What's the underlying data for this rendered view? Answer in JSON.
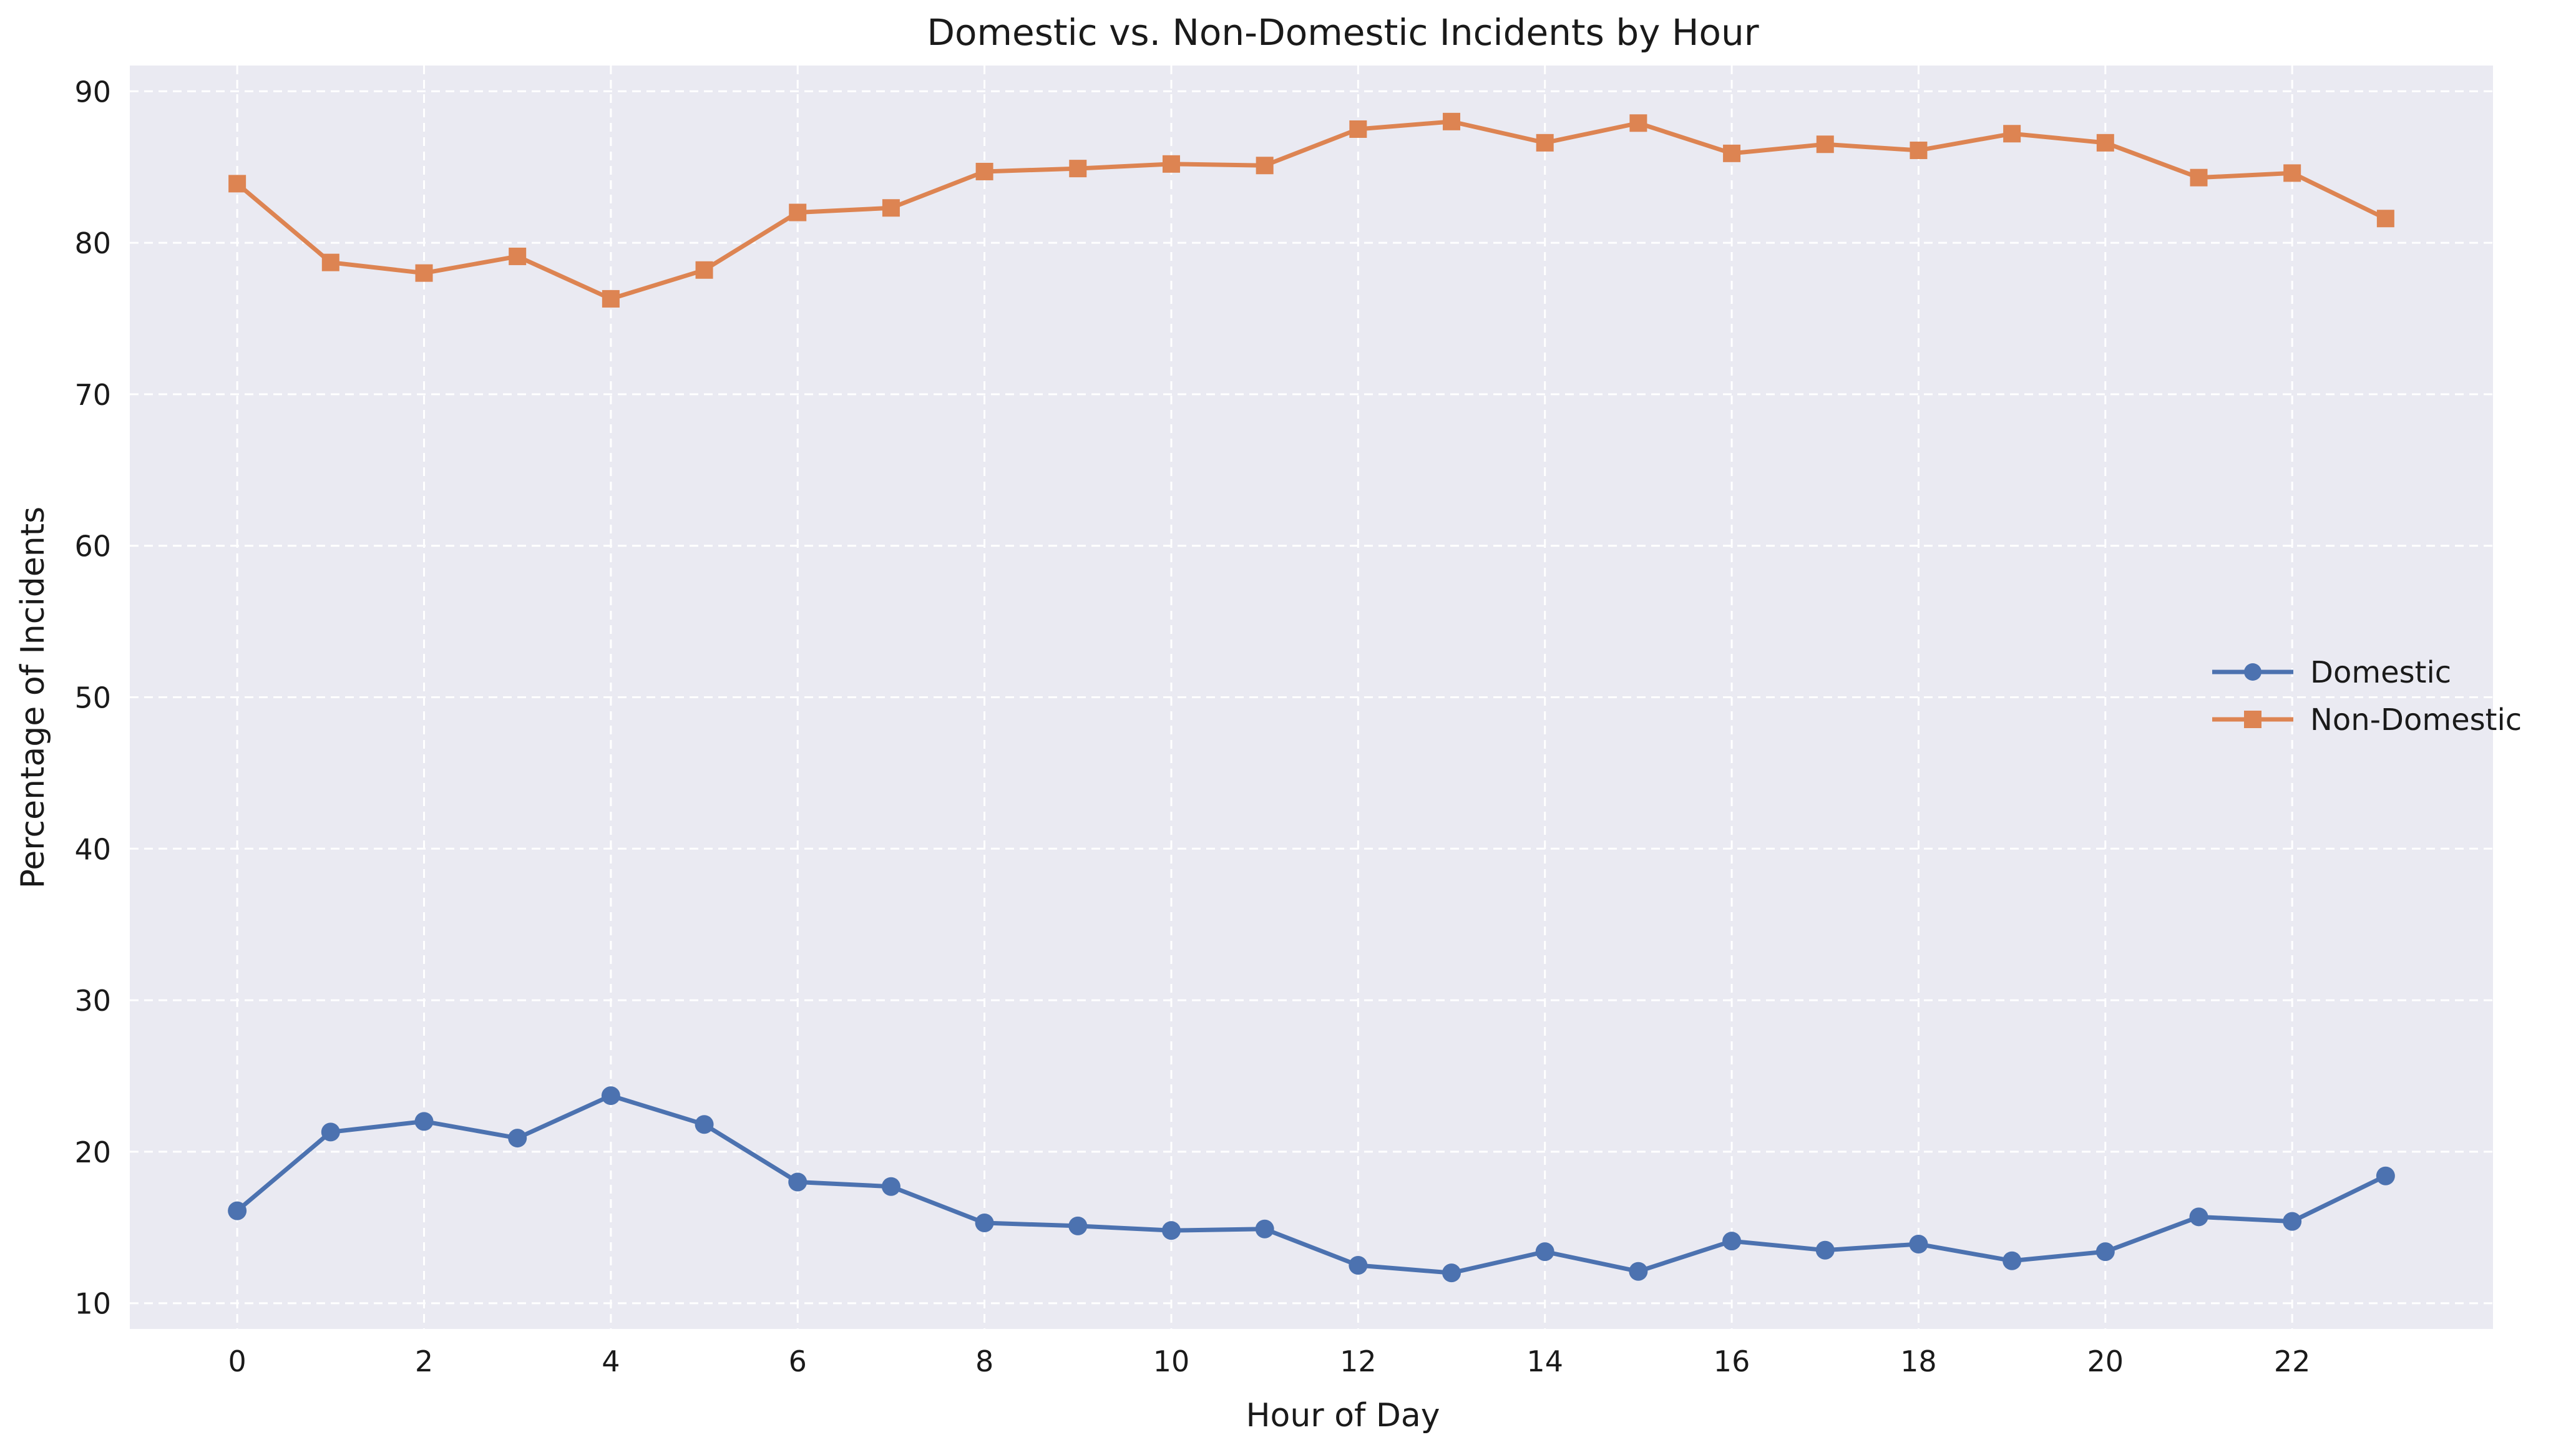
{
  "chart_data": {
    "type": "line",
    "title": "Domestic vs. Non-Domestic Incidents by Hour",
    "xlabel": "Hour of Day",
    "ylabel": "Percentage of Incidents",
    "x": [
      0,
      1,
      2,
      3,
      4,
      5,
      6,
      7,
      8,
      9,
      10,
      11,
      12,
      13,
      14,
      15,
      16,
      17,
      18,
      19,
      20,
      21,
      22,
      23
    ],
    "xticks": [
      0,
      2,
      4,
      6,
      8,
      10,
      12,
      14,
      16,
      18,
      20,
      22
    ],
    "xticklabels": [
      "0",
      "2",
      "4",
      "6",
      "8",
      "10",
      "12",
      "14",
      "16",
      "18",
      "20",
      "22"
    ],
    "yticks": [
      10,
      20,
      30,
      40,
      50,
      60,
      70,
      80,
      90
    ],
    "yticklabels": [
      "10",
      "20",
      "30",
      "40",
      "50",
      "60",
      "70",
      "80",
      "90"
    ],
    "xlim": [
      -1.15,
      24.15
    ],
    "ylim": [
      8.3,
      91.7
    ],
    "grid": true,
    "grid_style": "dashed",
    "background": "#eaeaf2",
    "legend_position": "center-right",
    "series": [
      {
        "name": "Domestic",
        "color": "#4c72b0",
        "marker": "circle",
        "values": [
          16.1,
          21.3,
          22.0,
          20.9,
          23.7,
          21.8,
          18.0,
          17.7,
          15.3,
          15.1,
          14.8,
          14.9,
          12.5,
          12.0,
          13.4,
          12.1,
          14.1,
          13.5,
          13.9,
          12.8,
          13.4,
          15.7,
          15.4,
          18.4
        ]
      },
      {
        "name": "Non-Domestic",
        "color": "#dd8452",
        "marker": "square",
        "values": [
          83.9,
          78.7,
          78.0,
          79.1,
          76.3,
          78.2,
          82.0,
          82.3,
          84.7,
          84.9,
          85.2,
          85.1,
          87.5,
          88.0,
          86.6,
          87.9,
          85.9,
          86.5,
          86.1,
          87.2,
          86.6,
          84.3,
          84.6,
          81.6
        ]
      }
    ]
  }
}
